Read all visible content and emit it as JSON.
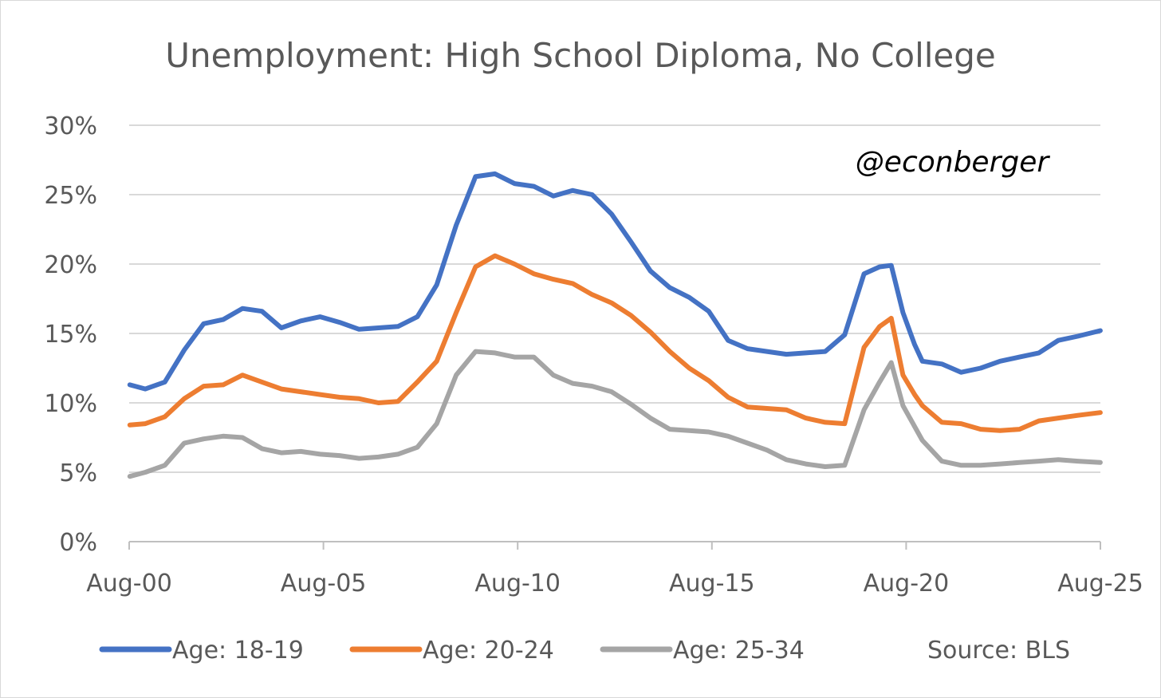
{
  "chart_data": {
    "type": "line",
    "title": "Unemployment: High School Diploma, No College",
    "xlabel": "",
    "ylabel": "",
    "x_tick_labels": [
      "Aug-00",
      "Aug-05",
      "Aug-10",
      "Aug-15",
      "Aug-20",
      "Aug-25"
    ],
    "y_tick_labels": [
      "0%",
      "5%",
      "10%",
      "15%",
      "20%",
      "25%",
      "30%"
    ],
    "ylim": [
      0,
      30
    ],
    "xlim": [
      2000.583,
      2025.583
    ],
    "grid": "horizontal",
    "legend_position": "bottom",
    "annotation": "@econberger",
    "source": "Source: BLS",
    "x": [
      2000.6,
      2001.0,
      2001.5,
      2002.0,
      2002.5,
      2003.0,
      2003.5,
      2004.0,
      2004.5,
      2005.0,
      2005.5,
      2006.0,
      2006.5,
      2007.0,
      2007.5,
      2008.0,
      2008.5,
      2009.0,
      2009.5,
      2010.0,
      2010.5,
      2011.0,
      2011.5,
      2012.0,
      2012.5,
      2013.0,
      2013.5,
      2014.0,
      2014.5,
      2015.0,
      2015.5,
      2016.0,
      2016.5,
      2017.0,
      2017.5,
      2018.0,
      2018.5,
      2019.0,
      2019.5,
      2019.9,
      2020.2,
      2020.5,
      2020.8,
      2021.0,
      2021.5,
      2022.0,
      2022.5,
      2023.0,
      2023.5,
      2024.0,
      2024.5,
      2025.0,
      2025.58
    ],
    "series": [
      {
        "name": "Age: 18-19",
        "color": "#4472c4",
        "values": [
          11.3,
          11.0,
          11.5,
          13.8,
          15.7,
          16.0,
          16.8,
          16.6,
          15.4,
          15.9,
          16.2,
          15.8,
          15.3,
          15.4,
          15.5,
          16.2,
          18.5,
          22.8,
          26.3,
          26.5,
          25.8,
          25.6,
          24.9,
          25.3,
          25.0,
          23.6,
          21.6,
          19.5,
          18.3,
          17.6,
          16.6,
          14.5,
          13.9,
          13.7,
          13.5,
          13.6,
          13.7,
          14.9,
          19.3,
          19.8,
          19.9,
          16.5,
          14.2,
          13.0,
          12.8,
          12.2,
          12.5,
          13.0,
          13.3,
          13.6,
          14.5,
          14.8,
          15.2
        ]
      },
      {
        "name": "Age: 20-24",
        "color": "#ed7d31",
        "values": [
          8.4,
          8.5,
          9.0,
          10.3,
          11.2,
          11.3,
          12.0,
          11.5,
          11.0,
          10.8,
          10.6,
          10.4,
          10.3,
          10.0,
          10.1,
          11.5,
          13.0,
          16.5,
          19.8,
          20.6,
          20.0,
          19.3,
          18.9,
          18.6,
          17.8,
          17.2,
          16.3,
          15.1,
          13.7,
          12.5,
          11.6,
          10.4,
          9.7,
          9.6,
          9.5,
          8.9,
          8.6,
          8.5,
          14.0,
          15.5,
          16.1,
          12.0,
          10.6,
          9.8,
          8.6,
          8.5,
          8.1,
          8.0,
          8.1,
          8.7,
          8.9,
          9.1,
          9.3
        ]
      },
      {
        "name": "Age: 25-34",
        "color": "#a5a5a5",
        "values": [
          4.7,
          5.0,
          5.5,
          7.1,
          7.4,
          7.6,
          7.5,
          6.7,
          6.4,
          6.5,
          6.3,
          6.2,
          6.0,
          6.1,
          6.3,
          6.8,
          8.5,
          12.0,
          13.7,
          13.6,
          13.3,
          13.3,
          12.0,
          11.4,
          11.2,
          10.8,
          9.9,
          8.9,
          8.1,
          8.0,
          7.9,
          7.6,
          7.1,
          6.6,
          5.9,
          5.6,
          5.4,
          5.5,
          9.5,
          11.5,
          12.9,
          9.8,
          8.3,
          7.3,
          5.8,
          5.5,
          5.5,
          5.6,
          5.7,
          5.8,
          5.9,
          5.8,
          5.7
        ]
      }
    ]
  }
}
